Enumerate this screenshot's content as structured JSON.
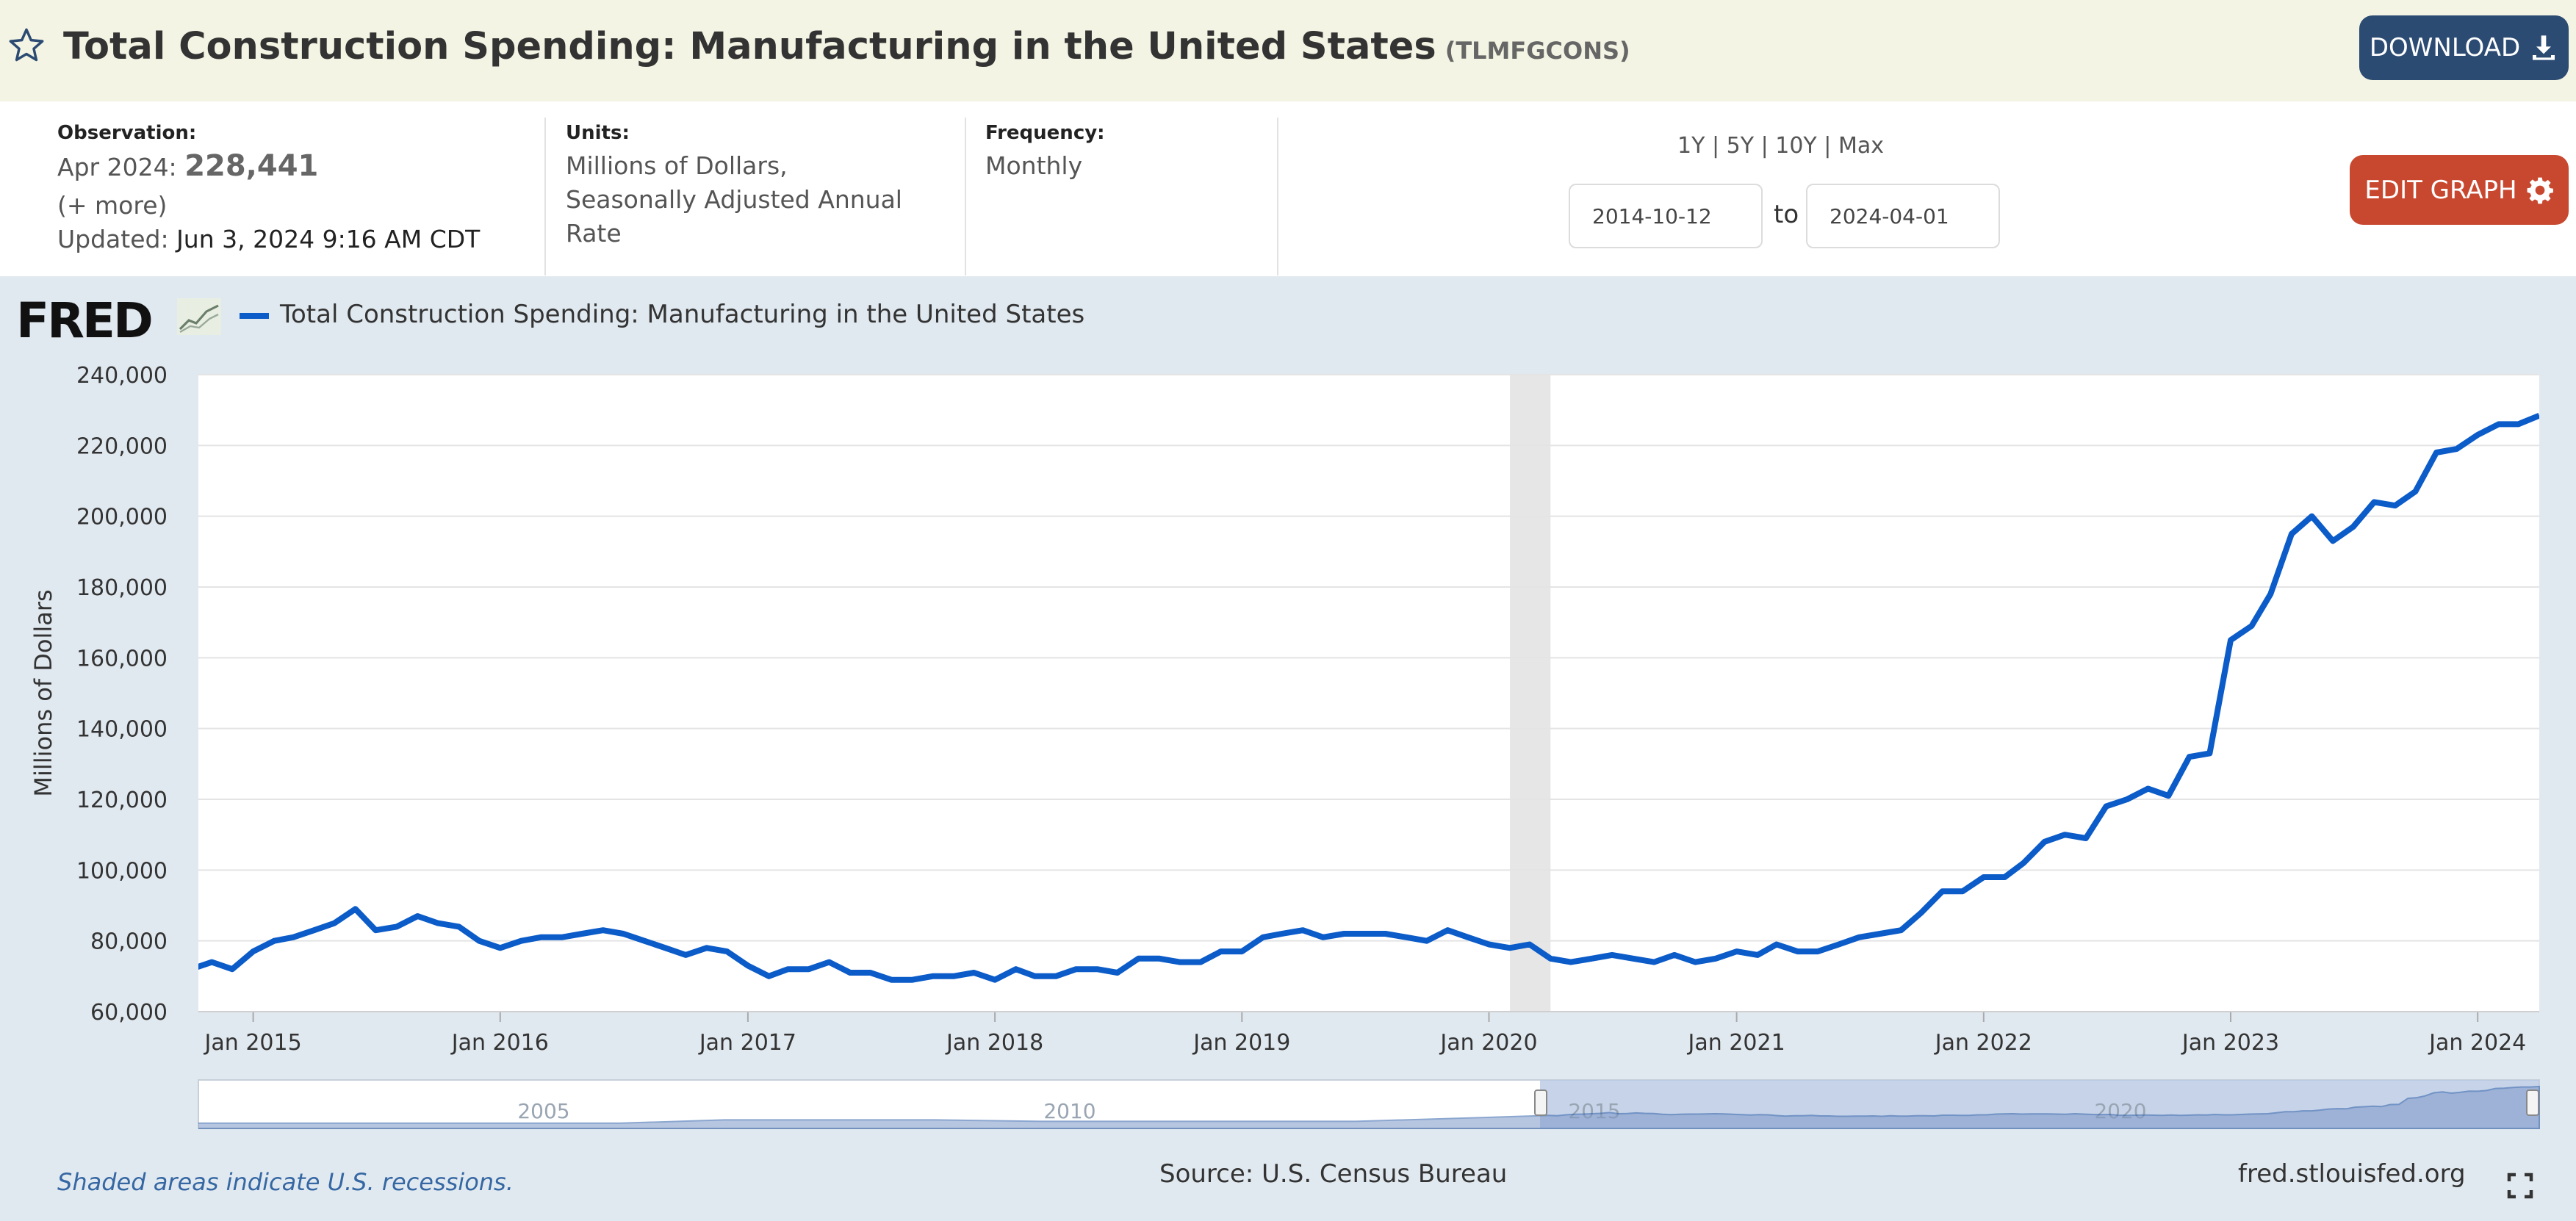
{
  "header": {
    "title": "Total Construction Spending: Manufacturing in the United States",
    "series_id": "(TLMFGCONS)",
    "download_label": "DOWNLOAD"
  },
  "meta": {
    "observation_label": "Observation:",
    "observation_period": "Apr 2024:",
    "observation_value": "228,441",
    "more": "(+ more)",
    "updated_label": "Updated:",
    "updated_value": "Jun 3, 2024 9:16 AM CDT",
    "units_label": "Units:",
    "units_line1": "Millions of Dollars,",
    "units_line2": "Seasonally Adjusted Annual",
    "units_line3": "Rate",
    "frequency_label": "Frequency:",
    "frequency_value": "Monthly",
    "range_1y": "1Y",
    "range_5y": "5Y",
    "range_10y": "10Y",
    "range_max": "Max",
    "sep": "|",
    "start_date": "2014-10-12",
    "to_label": "to",
    "end_date": "2024-04-01",
    "edit_graph_label": "EDIT GRAPH"
  },
  "legend": {
    "logo": "FRED",
    "series_name": "Total Construction Spending: Manufacturing in the United States"
  },
  "footer": {
    "note": "Shaded areas indicate U.S. recessions.",
    "source": "Source: U.S. Census Bureau",
    "url": "fred.stlouisfed.org"
  },
  "colors": {
    "line": "#0b5bc8",
    "recession": "#e6e6e6",
    "download_bg": "#2c4b73",
    "edit_bg": "#c8482f"
  },
  "chart_data": {
    "type": "line",
    "ylabel": "Millions of Dollars",
    "ylim": [
      60000,
      240000
    ],
    "yticks": [
      60000,
      80000,
      100000,
      120000,
      140000,
      160000,
      180000,
      200000,
      220000,
      240000
    ],
    "ytick_labels": [
      "60,000",
      "80,000",
      "100,000",
      "120,000",
      "140,000",
      "160,000",
      "180,000",
      "200,000",
      "220,000",
      "240,000"
    ],
    "xlim": [
      "2014-10-12",
      "2024-04-01"
    ],
    "xticks": [
      "2015-01-01",
      "2016-01-01",
      "2017-01-01",
      "2018-01-01",
      "2019-01-01",
      "2020-01-01",
      "2021-01-01",
      "2022-01-01",
      "2023-01-01",
      "2024-01-01"
    ],
    "xtick_labels": [
      "Jan 2015",
      "Jan 2016",
      "Jan 2017",
      "Jan 2018",
      "Jan 2019",
      "Jan 2020",
      "Jan 2021",
      "Jan 2022",
      "Jan 2023",
      "Jan 2024"
    ],
    "recessions": [
      [
        "2020-02-01",
        "2020-04-01"
      ]
    ],
    "grid": true,
    "navigator": {
      "tick_labels": [
        "2005",
        "2010",
        "2015",
        "2020"
      ]
    },
    "series": [
      {
        "name": "Total Construction Spending: Manufacturing in the United States",
        "start": "2014-10-01",
        "frequency": "monthly",
        "values": [
          72000,
          74000,
          72000,
          77000,
          80000,
          81000,
          83000,
          85000,
          89000,
          83000,
          84000,
          87000,
          85000,
          84000,
          80000,
          78000,
          80000,
          81000,
          81000,
          82000,
          83000,
          82000,
          80000,
          78000,
          76000,
          78000,
          77000,
          73000,
          70000,
          72000,
          72000,
          74000,
          71000,
          71000,
          69000,
          69000,
          70000,
          70000,
          71000,
          69000,
          72000,
          70000,
          70000,
          72000,
          72000,
          71000,
          75000,
          75000,
          74000,
          74000,
          77000,
          77000,
          81000,
          82000,
          83000,
          81000,
          82000,
          82000,
          82000,
          81000,
          80000,
          83000,
          81000,
          79000,
          78000,
          79000,
          75000,
          74000,
          75000,
          76000,
          75000,
          74000,
          76000,
          74000,
          75000,
          77000,
          76000,
          79000,
          77000,
          77000,
          79000,
          81000,
          82000,
          83000,
          88000,
          94000,
          94000,
          98000,
          98000,
          102000,
          108000,
          110000,
          109000,
          118000,
          120000,
          123000,
          121000,
          132000,
          133000,
          165000,
          169000,
          178000,
          195000,
          200000,
          193000,
          197000,
          204000,
          203000,
          207000,
          218000,
          219000,
          223000,
          226000,
          226000,
          228441
        ]
      }
    ]
  }
}
